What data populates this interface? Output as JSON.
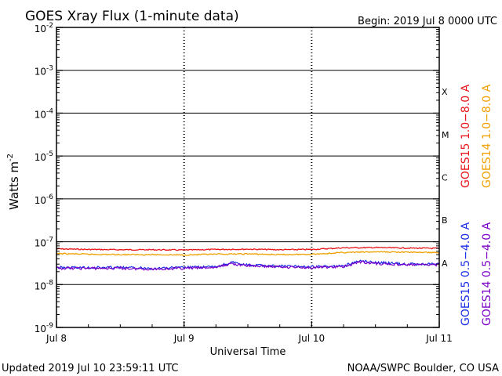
{
  "chart_data": {
    "type": "line",
    "title": "GOES Xray Flux (1-minute data)",
    "begin_text": "Begin:  2019 Jul 8 0000 UTC",
    "xlabel": "Universal Time",
    "ylabel": "Watts m",
    "ylabel_exponent": "-2",
    "y_scale": "log",
    "ylim": [
      "1e-9",
      "1e-2"
    ],
    "y_ticks": [
      {
        "base": "10",
        "exp": "-2",
        "value": "1e-2"
      },
      {
        "base": "10",
        "exp": "-3",
        "value": "1e-3"
      },
      {
        "base": "10",
        "exp": "-4",
        "value": "1e-4"
      },
      {
        "base": "10",
        "exp": "-5",
        "value": "1e-5"
      },
      {
        "base": "10",
        "exp": "-6",
        "value": "1e-6"
      },
      {
        "base": "10",
        "exp": "-7",
        "value": "1e-7"
      },
      {
        "base": "10",
        "exp": "-8",
        "value": "1e-8"
      },
      {
        "base": "10",
        "exp": "-9",
        "value": "1e-9"
      }
    ],
    "x_ticks": [
      "Jul 8",
      "Jul 9",
      "Jul 10",
      "Jul 11"
    ],
    "xlim": [
      "2019-07-08 00:00",
      "2019-07-11 00:00"
    ],
    "flare_classes": [
      {
        "label": "X",
        "value": "1e-4"
      },
      {
        "label": "M",
        "value": "1e-5"
      },
      {
        "label": "C",
        "value": "1e-6"
      },
      {
        "label": "B",
        "value": "1e-7"
      },
      {
        "label": "A",
        "value": "1e-8"
      }
    ],
    "legend_right": [
      {
        "name": "GOES15 1.0−8.0 A",
        "color": "#e8161b"
      },
      {
        "name": "GOES14 1.0−8.0 A",
        "color": "#f0a000"
      }
    ],
    "legend_bottom": [
      {
        "name": "GOES15 0.5−4.0 A",
        "color": "#1a2ee6"
      },
      {
        "name": "GOES14 0.5−4.0 A",
        "color": "#7a00c8"
      }
    ],
    "series": [
      {
        "name": "GOES15 1.0−8.0 A",
        "color": "#e8161b",
        "x": [
          "2019-07-08 00:00",
          "2019-07-08 06:00",
          "2019-07-08 12:00",
          "2019-07-08 18:00",
          "2019-07-09 00:00",
          "2019-07-09 06:00",
          "2019-07-09 12:00",
          "2019-07-09 18:00",
          "2019-07-10 00:00",
          "2019-07-10 06:00",
          "2019-07-10 12:00",
          "2019-07-10 18:00",
          "2019-07-11 00:00"
        ],
        "values": [
          "6.8e-8",
          "6.6e-8",
          "6.5e-8",
          "6.5e-8",
          "6.4e-8",
          "6.6e-8",
          "6.7e-8",
          "6.5e-8",
          "6.6e-8",
          "7.2e-8",
          "7.3e-8",
          "7.1e-8",
          "7.0e-8"
        ]
      },
      {
        "name": "GOES14 1.0−8.0 A",
        "color": "#f0a000",
        "x": [
          "2019-07-08 00:00",
          "2019-07-08 06:00",
          "2019-07-08 12:00",
          "2019-07-08 18:00",
          "2019-07-09 00:00",
          "2019-07-09 06:00",
          "2019-07-09 12:00",
          "2019-07-09 18:00",
          "2019-07-10 00:00",
          "2019-07-10 06:00",
          "2019-07-10 12:00",
          "2019-07-10 18:00",
          "2019-07-11 00:00"
        ],
        "values": [
          "5.3e-8",
          "5.1e-8",
          "5.0e-8",
          "5.0e-8",
          "4.9e-8",
          "5.1e-8",
          "5.2e-8",
          "5.0e-8",
          "5.1e-8",
          "5.6e-8",
          "5.8e-8",
          "5.7e-8",
          "5.6e-8"
        ]
      },
      {
        "name": "GOES15 0.5−4.0 A",
        "color": "#1a2ee6",
        "x": [
          "2019-07-08 00:00",
          "2019-07-08 06:00",
          "2019-07-08 12:00",
          "2019-07-08 18:00",
          "2019-07-09 00:00",
          "2019-07-09 06:00",
          "2019-07-09 09:00",
          "2019-07-09 11:00",
          "2019-07-09 14:00",
          "2019-07-09 18:00",
          "2019-07-10 00:00",
          "2019-07-10 06:00",
          "2019-07-10 09:00",
          "2019-07-10 12:00",
          "2019-07-10 18:00",
          "2019-07-11 00:00"
        ],
        "values": [
          "2.5e-8",
          "2.5e-8",
          "2.5e-8",
          "2.4e-8",
          "2.5e-8",
          "2.6e-8",
          "3.3e-8",
          "2.9e-8",
          "2.8e-8",
          "2.7e-8",
          "2.6e-8",
          "2.7e-8",
          "3.6e-8",
          "3.3e-8",
          "3.0e-8",
          "3.0e-8"
        ]
      },
      {
        "name": "GOES14 0.5−4.0 A",
        "color": "#7a00c8",
        "x": [
          "2019-07-08 00:00",
          "2019-07-08 06:00",
          "2019-07-08 12:00",
          "2019-07-08 18:00",
          "2019-07-09 00:00",
          "2019-07-09 06:00",
          "2019-07-09 09:00",
          "2019-07-09 11:00",
          "2019-07-09 14:00",
          "2019-07-09 18:00",
          "2019-07-10 00:00",
          "2019-07-10 06:00",
          "2019-07-10 09:00",
          "2019-07-10 12:00",
          "2019-07-10 18:00",
          "2019-07-11 00:00"
        ],
        "values": [
          "2.4e-8",
          "2.4e-8",
          "2.4e-8",
          "2.3e-8",
          "2.4e-8",
          "2.5e-8",
          "3.1e-8",
          "2.8e-8",
          "2.7e-8",
          "2.6e-8",
          "2.5e-8",
          "2.6e-8",
          "3.4e-8",
          "3.1e-8",
          "2.9e-8",
          "2.9e-8"
        ]
      }
    ],
    "grid": true
  },
  "footer": {
    "updated": "Updated 2019 Jul 10 23:59:11 UTC",
    "credit": "NOAA/SWPC Boulder, CO USA"
  }
}
